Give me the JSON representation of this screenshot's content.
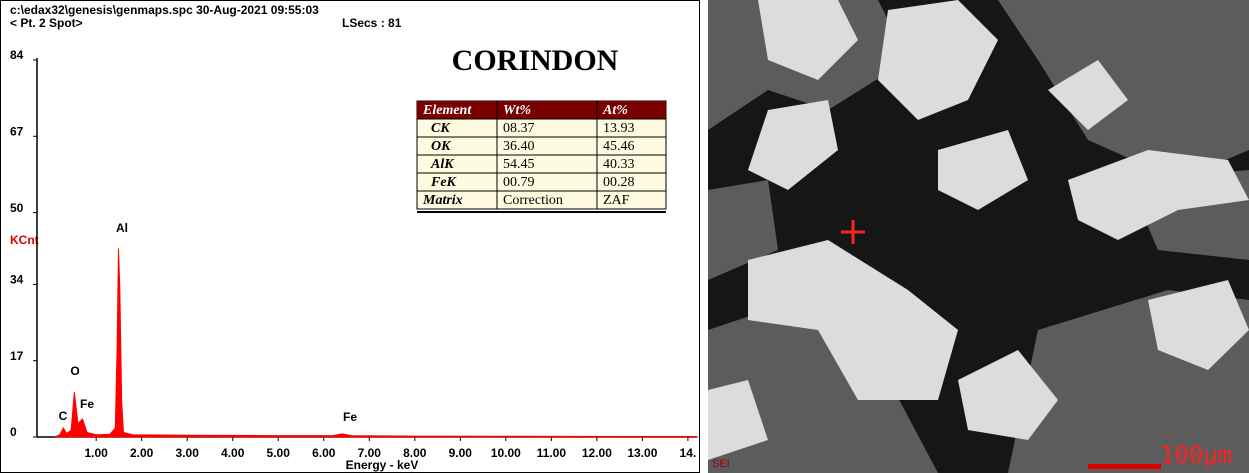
{
  "header": {
    "file": "c:\\edax32\\genesis\\genmaps.spc  30-Aug-2021 09:55:03",
    "spot": "< Pt. 2 Spot>",
    "lsecs": "LSecs : 81"
  },
  "chart_data": {
    "type": "area",
    "title": "CORINDON",
    "y_label": "KCnt",
    "x_label": "Energy - keV",
    "color": "#ff0000",
    "x": [
      0.1,
      0.2,
      0.28,
      0.35,
      0.45,
      0.52,
      0.6,
      0.7,
      0.8,
      1.0,
      1.3,
      1.42,
      1.46,
      1.49,
      1.52,
      1.56,
      1.6,
      1.8,
      3,
      5,
      6.2,
      6.4,
      6.6,
      8,
      14.2
    ],
    "values": [
      0,
      0.5,
      2,
      0.8,
      1.5,
      10,
      3,
      4,
      1,
      0.5,
      0.6,
      2,
      20,
      42,
      33,
      8,
      1,
      0.5,
      0.4,
      0.3,
      0.3,
      0.7,
      0.3,
      0.2,
      0.1
    ],
    "peak_labels": [
      "C",
      "O",
      "Fe",
      "Al",
      "Fe"
    ],
    "xlim": [
      -0.3,
      14.2
    ],
    "ylim": [
      0,
      84
    ],
    "xticks": [
      {
        "value": 1,
        "label": "1.00"
      },
      {
        "value": 2,
        "label": "2.00"
      },
      {
        "value": 3,
        "label": "3.00"
      },
      {
        "value": 4,
        "label": "4.00"
      },
      {
        "value": 5,
        "label": "5.00"
      },
      {
        "value": 6,
        "label": "6.00"
      },
      {
        "value": 7,
        "label": "7.00"
      },
      {
        "value": 8,
        "label": "8.00"
      },
      {
        "value": 9,
        "label": "9.00"
      },
      {
        "value": 10,
        "label": "10.00"
      },
      {
        "value": 11,
        "label": "11.00"
      },
      {
        "value": 12,
        "label": "12.00"
      },
      {
        "value": 13,
        "label": "13.00"
      },
      {
        "value": 14,
        "label": "14."
      }
    ],
    "yticks": [
      0,
      17,
      34,
      50,
      67,
      84
    ]
  },
  "table": {
    "header": [
      "Element",
      "Wt%",
      "At%"
    ],
    "rows": [
      [
        "CK",
        "08.37",
        "13.93"
      ],
      [
        "OK",
        "36.40",
        "45.46"
      ],
      [
        "AlK",
        "54.45",
        "40.33"
      ],
      [
        "FeK",
        "00.79",
        "00.28"
      ],
      [
        "Matrix",
        "Correction",
        "ZAF"
      ]
    ]
  },
  "image": {
    "detector": "SEI",
    "scale": "100µm"
  }
}
